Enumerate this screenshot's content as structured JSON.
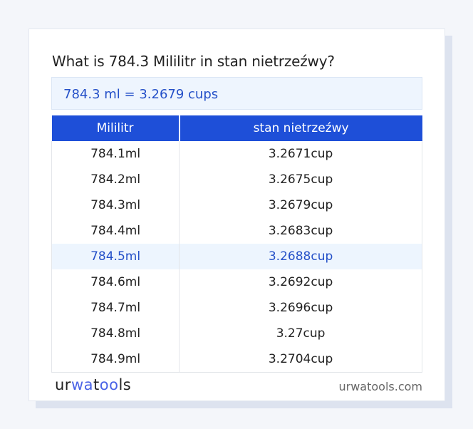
{
  "title": "What is 784.3 Mililitr in stan nietrzeźwy?",
  "result": "784.3 ml = 3.2679 cups",
  "table": {
    "headers": [
      "Mililitr",
      "stan nietrzeźwy"
    ],
    "rows": [
      [
        "784.1ml",
        "3.2671cup"
      ],
      [
        "784.2ml",
        "3.2675cup"
      ],
      [
        "784.3ml",
        "3.2679cup"
      ],
      [
        "784.4ml",
        "3.2683cup"
      ],
      [
        "784.5ml",
        "3.2688cup"
      ],
      [
        "784.6ml",
        "3.2692cup"
      ],
      [
        "784.7ml",
        "3.2696cup"
      ],
      [
        "784.8ml",
        "3.27cup"
      ],
      [
        "784.9ml",
        "3.2704cup"
      ]
    ],
    "highlighted_row": 4
  },
  "footer": {
    "logo_text": "urwatools",
    "site": "urwatools.com"
  },
  "colors": {
    "accent": "#1e4fd8",
    "highlight_text": "#2450c8",
    "highlight_bg": "#edf5fe"
  }
}
